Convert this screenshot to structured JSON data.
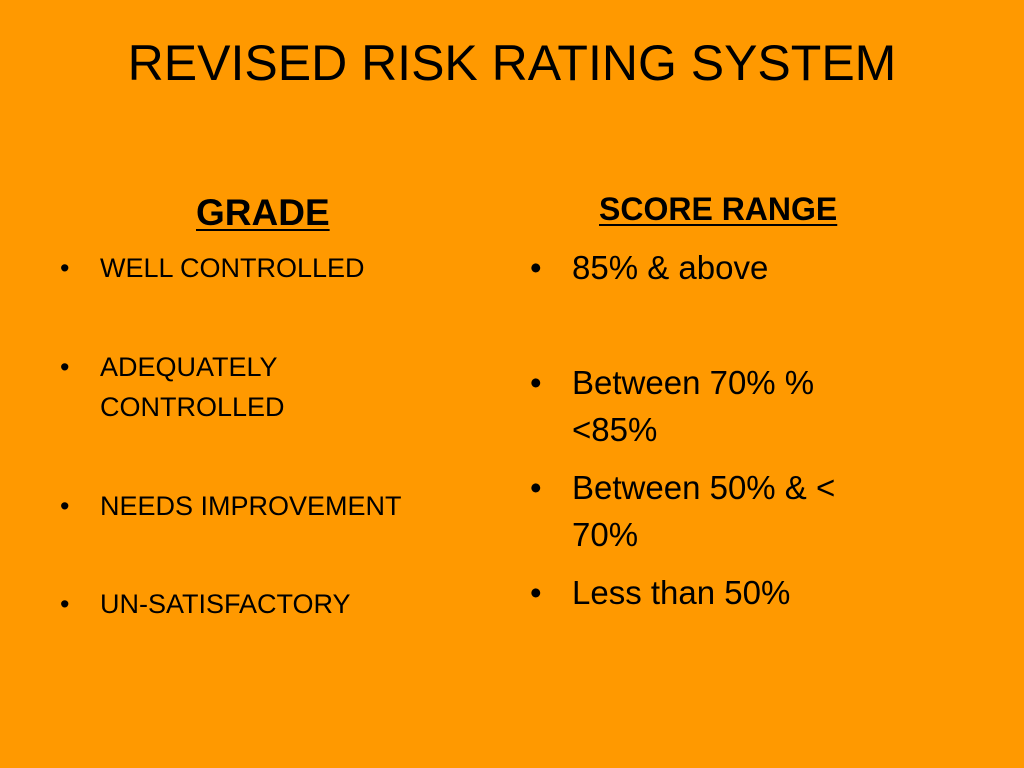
{
  "slide": {
    "title": "REVISED RISK RATING SYSTEM",
    "background_color": "#FF9900",
    "text_color": "#000000"
  },
  "grade": {
    "heading": "GRADE",
    "items": [
      "WELL CONTROLLED",
      "ADEQUATELY CONTROLLED",
      "NEEDS IMPROVEMENT",
      "UN-SATISFACTORY"
    ]
  },
  "score_range": {
    "heading": "SCORE RANGE",
    "items": [
      "85% & above",
      "Between 70% % <85%",
      "Between 50% & < 70%",
      "Less than 50%"
    ]
  },
  "bullet_glyph": "•"
}
